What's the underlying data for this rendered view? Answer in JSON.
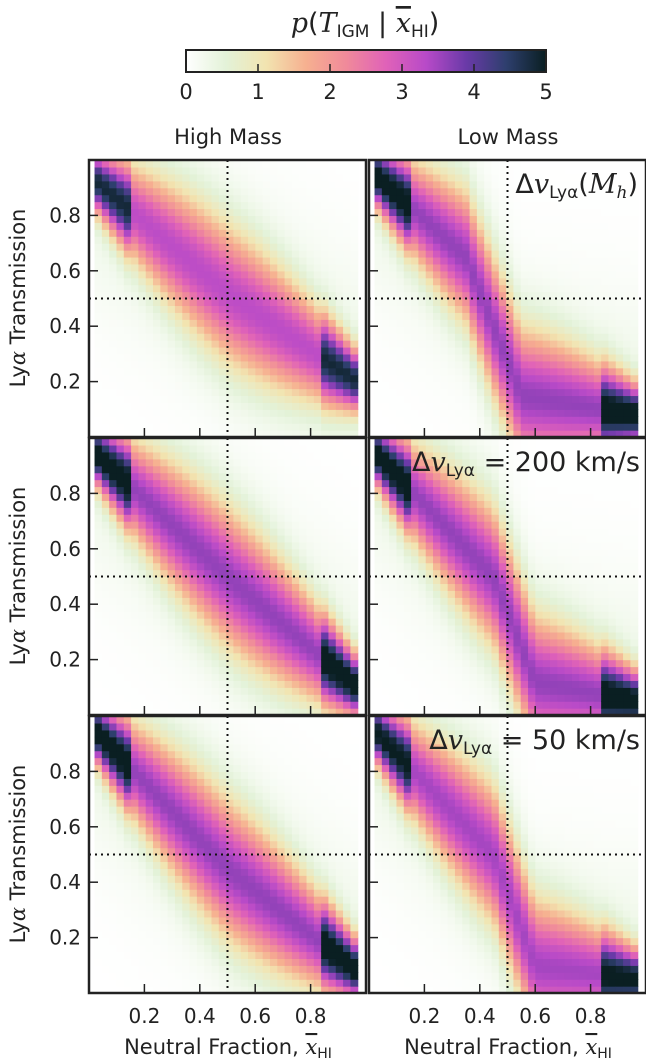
{
  "colorbar": {
    "title_p": "p",
    "title_T": "T",
    "title_T_sub": "IGM",
    "title_sep": "|",
    "title_x": "x",
    "title_x_sub": "HI",
    "ticks": [
      "0",
      "1",
      "2",
      "3",
      "4",
      "5"
    ],
    "vmin": 0,
    "vmax": 5,
    "colormap": [
      "#ffffff",
      "#e3f2d8",
      "#f2e4b0",
      "#f6b090",
      "#f08a9a",
      "#e062b8",
      "#b84ac8",
      "#6a3aa8",
      "#2e3f6e",
      "#0a1f22"
    ]
  },
  "columns": [
    "High Mass",
    "Low Mass"
  ],
  "rows": [
    {
      "ylabel_prefix": "Ly",
      "ylabel_alpha": "α",
      "ylabel_suffix": " Transmission"
    },
    {
      "ylabel_prefix": "Ly",
      "ylabel_alpha": "α",
      "ylabel_suffix": " Transmission"
    },
    {
      "ylabel_prefix": "Ly",
      "ylabel_alpha": "α",
      "ylabel_suffix": " Transmission"
    }
  ],
  "annotations": [
    {
      "delta": "Δ",
      "v": "v",
      "sub": "Lyα",
      "rest": "(",
      "mh": "M",
      "mh_sub": "h",
      "close": ")"
    },
    {
      "delta": "Δ",
      "v": "v",
      "sub": "Lyα",
      "rest": " = 200 km/s"
    },
    {
      "delta": "Δ",
      "v": "v",
      "sub": "Lyα",
      "rest": " = 50 km/s"
    }
  ],
  "xaxis": {
    "label_prefix": "Neutral Fraction, ",
    "label_x": "x",
    "label_sub": "HI",
    "ticks": [
      "0.2",
      "0.4",
      "0.6",
      "0.8"
    ],
    "tick_values": [
      0.2,
      0.4,
      0.6,
      0.8
    ],
    "xlim": [
      0,
      1
    ]
  },
  "yaxis": {
    "ticks": [
      "0.2",
      "0.4",
      "0.6",
      "0.8"
    ],
    "tick_values": [
      0.2,
      0.4,
      0.6,
      0.8
    ],
    "ylim": [
      0,
      1
    ]
  },
  "chart_data": [
    {
      "type": "heatmap",
      "panel": "High Mass / Δv(M_h)",
      "x_range": [
        0.02,
        0.97
      ],
      "ylim": [
        0,
        1
      ],
      "ridge_x": [
        0.02,
        0.5,
        0.97
      ],
      "ridge_y": [
        0.93,
        0.52,
        0.2
      ],
      "peak": 4.5,
      "vline_x": 0.5,
      "hline_y": 0.5
    },
    {
      "type": "heatmap",
      "panel": "Low Mass / Δv(M_h)",
      "x_range": [
        0.02,
        0.97
      ],
      "ylim": [
        0,
        1
      ],
      "ridge_x": [
        0.02,
        0.35,
        0.55,
        0.97
      ],
      "ridge_y": [
        0.95,
        0.65,
        0.15,
        0.08
      ],
      "peak": 5.0,
      "vline_x": 0.5,
      "hline_y": 0.5
    },
    {
      "type": "heatmap",
      "panel": "High Mass / Δv = 200 km/s",
      "x_range": [
        0.02,
        0.97
      ],
      "ylim": [
        0,
        1
      ],
      "ridge_x": [
        0.02,
        0.5,
        0.97
      ],
      "ridge_y": [
        0.95,
        0.5,
        0.1
      ],
      "peak": 5.0,
      "vline_x": 0.5,
      "hline_y": 0.5
    },
    {
      "type": "heatmap",
      "panel": "Low Mass / Δv = 200 km/s",
      "x_range": [
        0.02,
        0.97
      ],
      "ylim": [
        0,
        1
      ],
      "ridge_x": [
        0.02,
        0.45,
        0.6,
        0.97
      ],
      "ridge_y": [
        0.95,
        0.5,
        0.12,
        0.05
      ],
      "peak": 5.0,
      "vline_x": 0.5,
      "hline_y": 0.5
    },
    {
      "type": "heatmap",
      "panel": "High Mass / Δv = 50 km/s",
      "x_range": [
        0.02,
        0.97
      ],
      "ylim": [
        0,
        1
      ],
      "ridge_x": [
        0.02,
        0.5,
        0.97
      ],
      "ridge_y": [
        0.95,
        0.45,
        0.08
      ],
      "peak": 5.0,
      "vline_x": 0.5,
      "hline_y": 0.5
    },
    {
      "type": "heatmap",
      "panel": "Low Mass / Δv = 50 km/s",
      "x_range": [
        0.02,
        0.97
      ],
      "ylim": [
        0,
        1
      ],
      "ridge_x": [
        0.02,
        0.45,
        0.6,
        0.97
      ],
      "ridge_y": [
        0.95,
        0.5,
        0.1,
        0.05
      ],
      "peak": 4.8,
      "vline_x": 0.5,
      "hline_y": 0.5
    }
  ]
}
